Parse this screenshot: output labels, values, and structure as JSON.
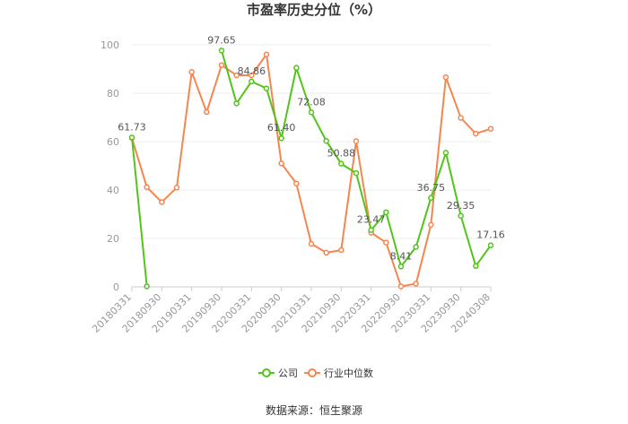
{
  "chart_data": {
    "type": "line",
    "title": "市盈率历史分位（%）",
    "ylim": [
      0,
      100
    ],
    "yticks": [
      0,
      20,
      40,
      60,
      80,
      100
    ],
    "x": [
      "20180331",
      "20180630",
      "20180930",
      "20181231",
      "20190331",
      "20190630",
      "20190930",
      "20191231",
      "20200331",
      "20200630",
      "20200930",
      "20201231",
      "20210331",
      "20210630",
      "20210930",
      "20211231",
      "20220331",
      "20220630",
      "20220930",
      "20221231",
      "20230331",
      "20230630",
      "20230930",
      "20231231",
      "20240308"
    ],
    "xtick_labels": [
      "20180331",
      "20180930",
      "20190331",
      "20190930",
      "20200331",
      "20200930",
      "20210331",
      "20210930",
      "20220331",
      "20220930",
      "20230331",
      "20230930",
      "20240308"
    ],
    "grid": true,
    "legend_position": "bottom",
    "series": [
      {
        "name": "公司",
        "color": "#52c41a",
        "values": [
          61.73,
          0.2,
          null,
          null,
          null,
          null,
          97.65,
          75.8,
          84.86,
          82.0,
          61.4,
          90.5,
          72.08,
          60.3,
          50.88,
          47.0,
          23.47,
          30.8,
          8.41,
          16.5,
          36.75,
          55.4,
          29.35,
          8.6,
          17.16
        ],
        "labels": [
          {
            "index": 0,
            "text": "61.73"
          },
          {
            "index": 6,
            "text": "97.65"
          },
          {
            "index": 8,
            "text": "84.86"
          },
          {
            "index": 10,
            "text": "61.40"
          },
          {
            "index": 12,
            "text": "72.08"
          },
          {
            "index": 14,
            "text": "50.88"
          },
          {
            "index": 16,
            "text": "23.47"
          },
          {
            "index": 18,
            "text": "8.41"
          },
          {
            "index": 20,
            "text": "36.75"
          },
          {
            "index": 22,
            "text": "29.35"
          },
          {
            "index": 24,
            "text": "17.16"
          }
        ]
      },
      {
        "name": "行业中位数",
        "color": "#f5864f",
        "values": [
          61.5,
          41.2,
          35.0,
          41.0,
          88.8,
          72.2,
          91.6,
          87.4,
          87.4,
          96.0,
          51.0,
          42.7,
          17.8,
          14.1,
          15.2,
          60.2,
          22.4,
          18.3,
          0.2,
          1.3,
          25.6,
          86.6,
          69.8,
          63.3,
          65.3
        ]
      }
    ]
  },
  "source": "数据来源：恒生聚源"
}
